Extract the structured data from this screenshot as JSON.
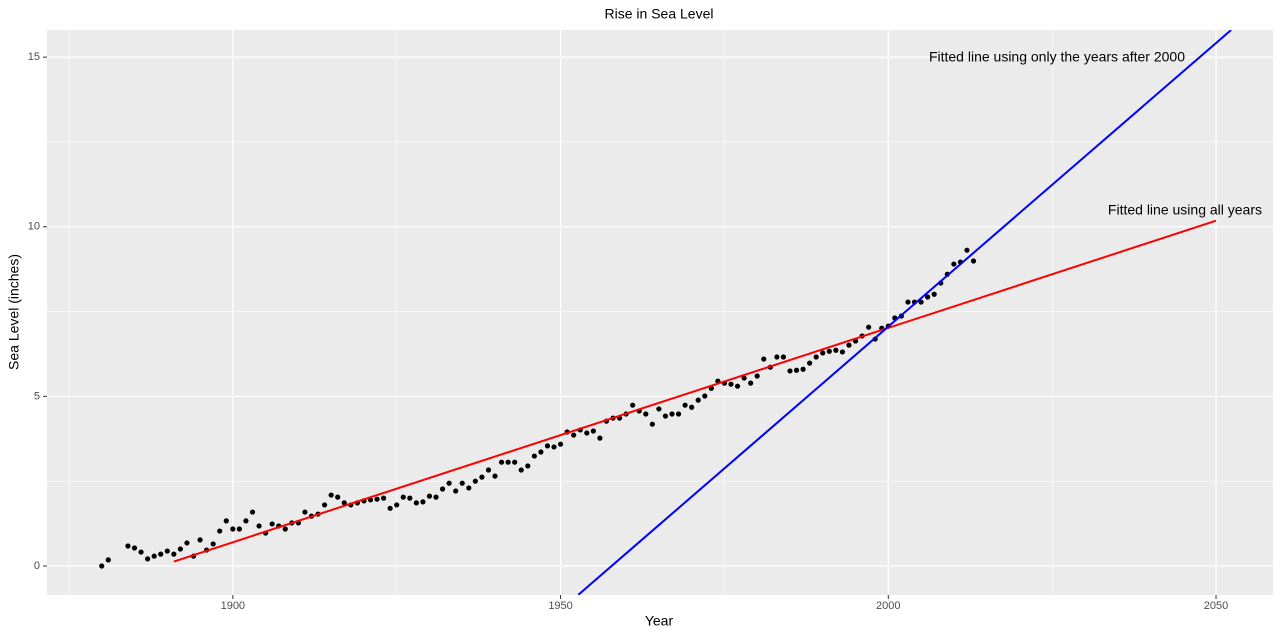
{
  "chart_data": {
    "type": "scatter",
    "title": "Rise in Sea Level",
    "x_label": "Year",
    "y_label": "Sea Level (inches)",
    "point_color": "#000000",
    "x": [
      1880,
      1881,
      1884,
      1885,
      1886,
      1887,
      1888,
      1889,
      1890,
      1891,
      1892,
      1893,
      1894,
      1895,
      1896,
      1897,
      1898,
      1899,
      1900,
      1901,
      1902,
      1903,
      1904,
      1905,
      1906,
      1907,
      1908,
      1909,
      1910,
      1911,
      1912,
      1913,
      1914,
      1915,
      1916,
      1917,
      1918,
      1919,
      1920,
      1921,
      1922,
      1923,
      1924,
      1925,
      1926,
      1927,
      1928,
      1929,
      1930,
      1931,
      1932,
      1933,
      1934,
      1935,
      1936,
      1937,
      1938,
      1939,
      1940,
      1941,
      1942,
      1943,
      1944,
      1945,
      1946,
      1947,
      1948,
      1949,
      1950,
      1951,
      1952,
      1953,
      1954,
      1955,
      1956,
      1957,
      1958,
      1959,
      1960,
      1961,
      1962,
      1963,
      1964,
      1965,
      1966,
      1967,
      1968,
      1969,
      1970,
      1971,
      1972,
      1973,
      1974,
      1975,
      1976,
      1977,
      1978,
      1979,
      1980,
      1981,
      1982,
      1983,
      1984,
      1985,
      1986,
      1987,
      1988,
      1989,
      1990,
      1991,
      1992,
      1993,
      1994,
      1995,
      1996,
      1997,
      1998,
      1999,
      2000,
      2001,
      2002,
      2003,
      2004,
      2005,
      2006,
      2007,
      2008,
      2009,
      2010,
      2011,
      2012,
      2013
    ],
    "values": [
      0.0,
      0.18,
      0.59,
      0.53,
      0.41,
      0.21,
      0.29,
      0.35,
      0.44,
      0.35,
      0.5,
      0.68,
      0.29,
      0.77,
      0.47,
      0.65,
      1.03,
      1.33,
      1.09,
      1.09,
      1.33,
      1.59,
      1.18,
      0.97,
      1.24,
      1.18,
      1.09,
      1.27,
      1.27,
      1.59,
      1.47,
      1.53,
      1.8,
      2.09,
      2.03,
      1.86,
      1.8,
      1.86,
      1.92,
      1.95,
      1.97,
      2.0,
      1.7,
      1.8,
      2.03,
      2.0,
      1.86,
      1.89,
      2.06,
      2.03,
      2.27,
      2.44,
      2.21,
      2.44,
      2.3,
      2.5,
      2.62,
      2.83,
      2.65,
      3.06,
      3.06,
      3.06,
      2.83,
      2.95,
      3.24,
      3.36,
      3.54,
      3.51,
      3.59,
      3.95,
      3.86,
      4.01,
      3.92,
      3.98,
      3.77,
      4.27,
      4.36,
      4.36,
      4.48,
      4.74,
      4.57,
      4.48,
      4.18,
      4.63,
      4.42,
      4.48,
      4.48,
      4.74,
      4.68,
      4.89,
      5.01,
      5.24,
      5.45,
      5.39,
      5.36,
      5.3,
      5.54,
      5.39,
      5.6,
      6.1,
      5.86,
      6.16,
      6.16,
      5.75,
      5.77,
      5.8,
      5.98,
      6.16,
      6.28,
      6.33,
      6.36,
      6.31,
      6.51,
      6.63,
      6.78,
      7.04,
      6.69,
      7.01,
      7.07,
      7.31,
      7.37,
      7.78,
      7.78,
      7.78,
      7.93,
      8.01,
      8.34,
      8.6,
      8.9,
      8.96,
      9.31,
      8.99
    ],
    "lines": [
      {
        "type": "line",
        "color": "#ff0000",
        "x": [
          1891,
          2050
        ],
        "values": [
          0.13,
          10.18
        ]
      },
      {
        "type": "line",
        "color": "#0000ff",
        "x": [
          1952.7,
          2052.3
        ],
        "values": [
          -0.85,
          15.8
        ]
      }
    ],
    "annotations": [
      {
        "text": "Fitted line using only the years after 2000",
        "color": "#0000ff"
      },
      {
        "text": "Fitted line using all years",
        "color": "#ff0000"
      }
    ],
    "xlim": [
      1871.65,
      2058.69
    ],
    "ylim": [
      -0.855,
      15.8
    ],
    "xticks": [
      1900,
      1950,
      2000,
      2050
    ],
    "yticks": [
      0,
      5,
      10,
      15
    ],
    "x_minor_grid": [
      1875,
      1925,
      1975,
      2025
    ],
    "y_minor_grid": [
      2.5,
      7.5,
      12.5
    ],
    "grid": true
  }
}
